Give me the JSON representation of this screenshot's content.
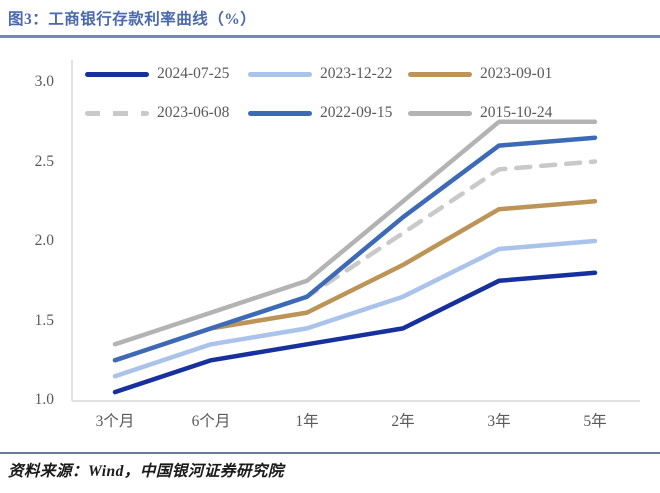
{
  "title": "图3：工商银行存款利率曲线（%）",
  "source_note": "资料来源：Wind，中国银河证券研究院",
  "colors": {
    "title_blue": "#4A69AC",
    "rule_blue": "#7287BE",
    "footer_rule_blue": "#66799F",
    "axis_gray": "#D9D9D9",
    "tick_label_gray": "#595959",
    "footer_text": "#1A1A1A"
  },
  "chart_data": {
    "type": "line",
    "title": "工商银行存款利率曲线（%）",
    "categories": [
      "3个月",
      "6个月",
      "1年",
      "2年",
      "3年",
      "5年"
    ],
    "y_ticks": [
      "3.0",
      "2.5",
      "2.0",
      "1.5",
      "1.0"
    ],
    "ylim": [
      1.0,
      3.0
    ],
    "grid": false,
    "legend_position": "top-inside",
    "series": [
      {
        "name": "2024-07-25",
        "color": "#16309E",
        "dash": false,
        "values": [
          1.05,
          1.25,
          1.35,
          1.45,
          1.75,
          1.8
        ]
      },
      {
        "name": "2023-12-22",
        "color": "#A9C3EA",
        "dash": false,
        "values": [
          1.15,
          1.35,
          1.45,
          1.65,
          1.95,
          2.0
        ]
      },
      {
        "name": "2023-09-01",
        "color": "#BC9457",
        "dash": false,
        "values": [
          1.25,
          1.45,
          1.55,
          1.85,
          2.2,
          2.25
        ]
      },
      {
        "name": "2023-06-08",
        "color": "#C9C9C9",
        "dash": true,
        "values": [
          1.25,
          1.45,
          1.65,
          2.05,
          2.45,
          2.5
        ]
      },
      {
        "name": "2022-09-15",
        "color": "#3C6AB6",
        "dash": false,
        "values": [
          1.25,
          1.45,
          1.65,
          2.15,
          2.6,
          2.65
        ]
      },
      {
        "name": "2015-10-24",
        "color": "#B3B3B3",
        "dash": false,
        "values": [
          1.35,
          1.55,
          1.75,
          2.25,
          2.75,
          2.75
        ]
      }
    ]
  }
}
